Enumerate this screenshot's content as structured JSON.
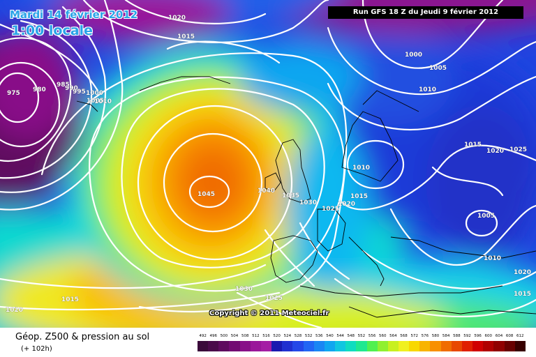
{
  "header": {
    "date": "Mardi 14 février 2012",
    "time": "1:00 locale",
    "run": "Run GFS 18 Z du Jeudi 9 février 2012"
  },
  "copyright": "Copyright © 2011 Meteociel.fr",
  "footer": {
    "title": "Géop. Z500 & pression au sol",
    "subtitle": "(+ 102h)"
  },
  "legend": {
    "values": [
      "492",
      "496",
      "500",
      "504",
      "508",
      "512",
      "516",
      "520",
      "524",
      "528",
      "532",
      "536",
      "540",
      "544",
      "548",
      "552",
      "556",
      "560",
      "564",
      "568",
      "572",
      "576",
      "580",
      "584",
      "588",
      "592",
      "596",
      "600",
      "604",
      "608",
      "612"
    ],
    "colors": [
      "#3a0a3a",
      "#4a0a4a",
      "#5e0a5e",
      "#720a72",
      "#881088",
      "#9a179a",
      "#a41ea4",
      "#1a1ab0",
      "#2030d0",
      "#2448e8",
      "#2266f4",
      "#1a86f4",
      "#10a6f0",
      "#10c6e0",
      "#10dcc0",
      "#20e890",
      "#50f050",
      "#90f030",
      "#c8f020",
      "#f0f020",
      "#f8d800",
      "#f8b400",
      "#f89000",
      "#f06c00",
      "#e84800",
      "#e02000",
      "#d00000",
      "#b00000",
      "#900000",
      "#680000",
      "#380000"
    ]
  },
  "isobars": [
    {
      "label": "1020"
    },
    {
      "label": "1015"
    },
    {
      "label": "975"
    },
    {
      "label": "980"
    },
    {
      "label": "985"
    },
    {
      "label": "990"
    },
    {
      "label": "995"
    },
    {
      "label": "1000"
    },
    {
      "label": "1005"
    },
    {
      "label": "1010"
    },
    {
      "label": "1045"
    },
    {
      "label": "1040"
    },
    {
      "label": "1035"
    },
    {
      "label": "1030"
    },
    {
      "label": "1025"
    },
    {
      "label": "1020"
    },
    {
      "label": "1015"
    },
    {
      "label": "1010"
    },
    {
      "label": "1000"
    },
    {
      "label": "1005"
    },
    {
      "label": "1010"
    },
    {
      "label": "1015"
    },
    {
      "label": "1020"
    },
    {
      "label": "1025"
    },
    {
      "label": "1005"
    },
    {
      "label": "1010"
    },
    {
      "label": "1020"
    },
    {
      "label": "1015"
    },
    {
      "label": "1030"
    },
    {
      "label": "1025"
    },
    {
      "label": "1020"
    },
    {
      "label": "1015"
    }
  ]
}
